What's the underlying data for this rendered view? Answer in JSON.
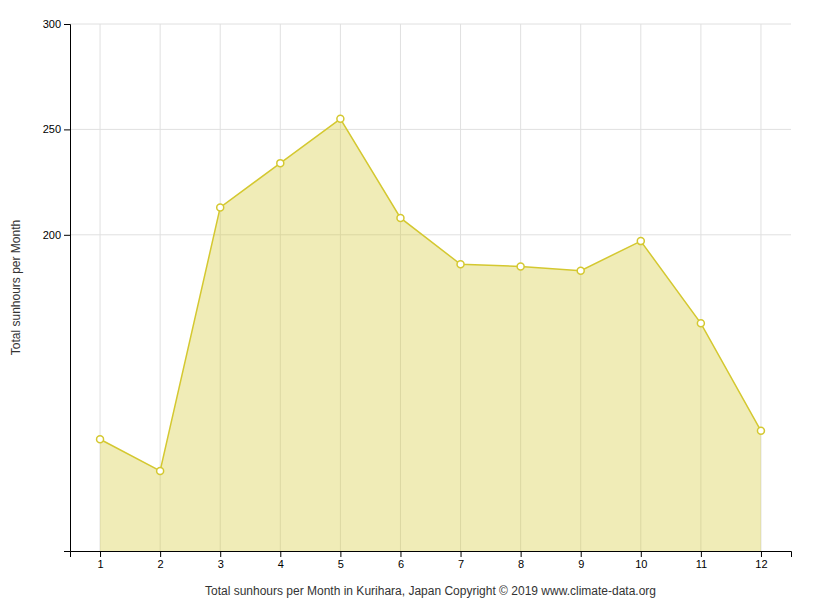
{
  "chart_data": {
    "type": "area",
    "x": [
      1,
      2,
      3,
      4,
      5,
      6,
      7,
      8,
      9,
      10,
      11,
      12
    ],
    "values": [
      103,
      88,
      213,
      234,
      255,
      208,
      186,
      185,
      183,
      197,
      158,
      107
    ],
    "color": "#D4C830",
    "marker": "circle",
    "xlim": [
      0.5,
      12.5
    ],
    "xticks": [
      1,
      2,
      3,
      4,
      5,
      6,
      7,
      8,
      9,
      10,
      11,
      12
    ],
    "ylim": [
      50,
      300
    ],
    "yticks": [
      200,
      250,
      300
    ],
    "grid": true,
    "xlabel": "Total sunhours per Month in Kurihara, Japan Copyright © 2019 www.climate-data.org",
    "ylabel": "Total sunhours per Month"
  }
}
